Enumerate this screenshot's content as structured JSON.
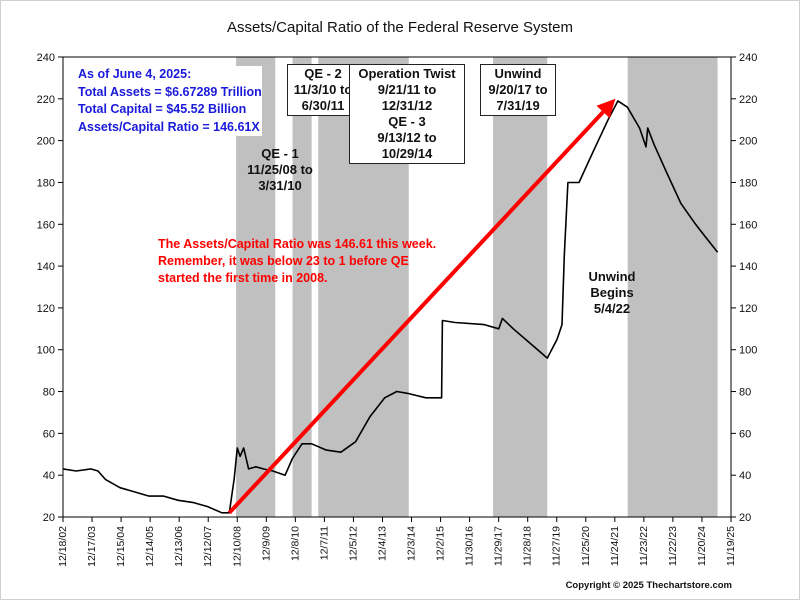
{
  "title": "Assets/Capital Ratio of the Federal Reserve System",
  "info_lines": [
    "As of June 4, 2025:",
    "Total Assets = $6.67289 Trillion",
    "Total Capital  = $45.52 Billion",
    "Assets/Capital Ratio = 146.61X"
  ],
  "note_lines": [
    "The Assets/Capital Ratio was 146.61 this week.",
    "Remember, it was below 23 to 1 before QE",
    "started the first time in 2008."
  ],
  "labels": {
    "qe1": [
      "QE - 1",
      "11/25/08 to",
      "3/31/10"
    ],
    "qe2": [
      "QE - 2",
      "11/3/10 to",
      "6/30/11"
    ],
    "twist": [
      "Operation Twist",
      "9/21/11 to",
      "12/31/12",
      "QE - 3",
      "9/13/12 to",
      "10/29/14"
    ],
    "unwind1": [
      "Unwind",
      "9/20/17 to",
      "7/31/19"
    ],
    "unwind2": [
      "Unwind",
      "Begins",
      "5/4/22"
    ]
  },
  "copyright": "Copyright © 2025 Thechartstore.com",
  "colors": {
    "line": "#000000",
    "shade": "#c0c0c0",
    "arrow": "#ff0000",
    "info_text": "#1a1adb",
    "note_text": "#ff0000"
  },
  "chart_data": {
    "type": "line",
    "title": "Assets/Capital Ratio of the Federal Reserve System",
    "xlabel": "",
    "ylabel": "",
    "ylim": [
      20,
      240
    ],
    "yticks": [
      20,
      40,
      60,
      80,
      100,
      120,
      140,
      160,
      180,
      200,
      220,
      240
    ],
    "xlim": [
      "2002-12-18",
      "2025-11-19"
    ],
    "xticks": [
      "12/18/02",
      "12/17/03",
      "12/15/04",
      "12/14/05",
      "12/13/06",
      "12/12/07",
      "12/10/08",
      "12/9/09",
      "12/8/10",
      "12/7/11",
      "12/5/12",
      "12/4/13",
      "12/3/14",
      "12/2/15",
      "11/30/16",
      "11/29/17",
      "11/28/18",
      "11/27/19",
      "11/25/20",
      "11/24/21",
      "11/23/22",
      "11/22/23",
      "11/20/24",
      "11/19/25"
    ],
    "grid": false,
    "shaded_periods": [
      {
        "name": "QE - 1",
        "start": "2008-11-25",
        "end": "2010-03-31"
      },
      {
        "name": "QE - 2",
        "start": "2010-11-03",
        "end": "2011-06-30"
      },
      {
        "name": "Operation Twist / QE - 3",
        "start": "2011-09-21",
        "end": "2014-10-29"
      },
      {
        "name": "Unwind",
        "start": "2017-09-20",
        "end": "2019-07-31"
      },
      {
        "name": "Unwind Begins",
        "start": "2022-05-04",
        "end": "2025-06-04"
      }
    ],
    "arrow": {
      "from": [
        "2008-09-01",
        22
      ],
      "to": [
        "2021-12-01",
        220
      ]
    },
    "series": [
      {
        "values": [
          [
            "2002-12-18",
            43
          ],
          [
            "2003-06-01",
            42
          ],
          [
            "2003-12-01",
            43
          ],
          [
            "2004-03-01",
            42
          ],
          [
            "2004-06-01",
            38
          ],
          [
            "2004-12-01",
            34
          ],
          [
            "2005-06-01",
            32
          ],
          [
            "2005-12-01",
            30
          ],
          [
            "2006-06-01",
            30
          ],
          [
            "2006-12-01",
            28
          ],
          [
            "2007-06-01",
            27
          ],
          [
            "2007-12-01",
            25
          ],
          [
            "2008-06-01",
            22
          ],
          [
            "2008-09-01",
            22
          ],
          [
            "2008-11-01",
            38
          ],
          [
            "2008-12-10",
            53
          ],
          [
            "2009-01-15",
            49
          ],
          [
            "2009-03-01",
            53
          ],
          [
            "2009-05-01",
            43
          ],
          [
            "2009-08-01",
            44
          ],
          [
            "2009-11-01",
            43
          ],
          [
            "2010-03-01",
            42
          ],
          [
            "2010-08-01",
            40
          ],
          [
            "2010-11-01",
            48
          ],
          [
            "2011-03-01",
            55
          ],
          [
            "2011-06-30",
            55
          ],
          [
            "2012-01-01",
            52
          ],
          [
            "2012-07-01",
            51
          ],
          [
            "2013-01-01",
            56
          ],
          [
            "2013-07-01",
            68
          ],
          [
            "2014-01-01",
            77
          ],
          [
            "2014-06-01",
            80
          ],
          [
            "2014-10-29",
            79
          ],
          [
            "2015-06-01",
            77
          ],
          [
            "2015-12-15",
            77
          ],
          [
            "2015-12-25",
            114
          ],
          [
            "2016-06-01",
            113
          ],
          [
            "2017-06-01",
            112
          ],
          [
            "2017-12-01",
            110
          ],
          [
            "2018-01-15",
            115
          ],
          [
            "2018-06-01",
            110
          ],
          [
            "2019-01-01",
            103
          ],
          [
            "2019-08-01",
            96
          ],
          [
            "2019-12-01",
            105
          ],
          [
            "2020-02-01",
            112
          ],
          [
            "2020-03-01",
            145
          ],
          [
            "2020-04-15",
            180
          ],
          [
            "2020-09-01",
            180
          ],
          [
            "2021-03-01",
            195
          ],
          [
            "2021-09-01",
            210
          ],
          [
            "2022-01-01",
            219
          ],
          [
            "2022-05-01",
            216
          ],
          [
            "2022-10-01",
            206
          ],
          [
            "2022-12-20",
            197
          ],
          [
            "2023-01-10",
            206
          ],
          [
            "2023-04-01",
            198
          ],
          [
            "2023-09-01",
            185
          ],
          [
            "2024-03-01",
            170
          ],
          [
            "2024-09-01",
            160
          ],
          [
            "2025-01-01",
            154
          ],
          [
            "2025-06-04",
            146.61
          ]
        ]
      }
    ]
  }
}
